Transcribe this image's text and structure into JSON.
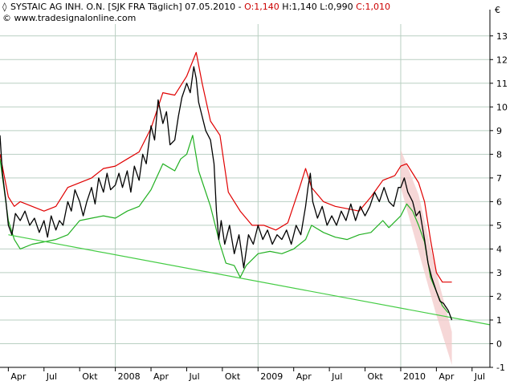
{
  "header": {
    "symbol_icon": "diamond-icon",
    "symbol_label": "SYSTAIC AG INH. O.N. [SJK FRA  Täglich] 07.05.2010 - ",
    "open_label": "O:1,140",
    "hl_label": " H:1,140 L:0,990 ",
    "close_label": "C:1,010",
    "copyright": "© www.tradesignalonline.com"
  },
  "colors": {
    "price": "#000000",
    "upper_band": "#e00000",
    "lower_band": "#22b022",
    "trendline": "#44cc44",
    "projection": "#f3c9c9",
    "grid": "#b9cfc2",
    "header_red": "#cc0000",
    "axis": "#000000"
  },
  "chart_data": {
    "type": "line",
    "title": "SYSTAIC AG INH. O.N. [SJK FRA  Täglich] 07.05.2010",
    "xlabel": "",
    "ylabel": "",
    "currency_label": "€",
    "ylim": [
      -1,
      13.5
    ],
    "y_ticks": [
      13,
      12,
      11,
      10,
      9,
      8,
      7,
      6,
      5,
      4,
      3,
      2,
      1,
      0,
      -1
    ],
    "y_tick_labels": [
      "13",
      "12",
      "11",
      "10",
      "9",
      "8",
      "7",
      "6",
      "5",
      "4",
      "3",
      "2",
      "1",
      "0",
      "-1"
    ],
    "x_ticks": [
      {
        "label": "Apr",
        "t": 0.0
      },
      {
        "label": "Jul",
        "t": 3.0
      },
      {
        "label": "Okt",
        "t": 6.0
      },
      {
        "label": "2008",
        "t": 9.0
      },
      {
        "label": "Apr",
        "t": 12.0
      },
      {
        "label": "Jul",
        "t": 15.0
      },
      {
        "label": "Okt",
        "t": 18.0
      },
      {
        "label": "2009",
        "t": 21.0
      },
      {
        "label": "Apr",
        "t": 24.0
      },
      {
        "label": "Jul",
        "t": 27.0
      },
      {
        "label": "Okt",
        "t": 30.0
      },
      {
        "label": "2010",
        "t": 33.0
      },
      {
        "label": "Apr",
        "t": 36.0
      },
      {
        "label": "Jul",
        "t": 39.0
      }
    ],
    "xlim": [
      -0.7,
      40.5
    ],
    "major_gridlines_t": [
      9.0,
      21.0,
      33.0
    ],
    "series": [
      {
        "name": "",
        "key": "price",
        "x": [
          -0.7,
          -0.5,
          -0.2,
          0.0,
          0.3,
          0.6,
          1.0,
          1.4,
          1.8,
          2.2,
          2.6,
          3.0,
          3.3,
          3.6,
          4.0,
          4.3,
          4.6,
          5.0,
          5.3,
          5.6,
          6.0,
          6.3,
          6.6,
          7.0,
          7.3,
          7.6,
          8.0,
          8.3,
          8.6,
          9.0,
          9.3,
          9.6,
          10.0,
          10.3,
          10.6,
          11.0,
          11.3,
          11.6,
          12.0,
          12.3,
          12.6,
          13.0,
          13.3,
          13.6,
          14.0,
          14.3,
          14.6,
          15.0,
          15.3,
          15.6,
          15.8,
          16.0,
          16.3,
          16.6,
          17.0,
          17.3,
          17.5,
          17.7,
          17.9,
          18.2,
          18.6,
          19.0,
          19.4,
          19.8,
          20.2,
          20.6,
          21.0,
          21.4,
          21.8,
          22.2,
          22.6,
          23.0,
          23.4,
          23.8,
          24.2,
          24.6,
          25.0,
          25.2,
          25.4,
          25.6,
          26.0,
          26.4,
          26.8,
          27.2,
          27.6,
          28.0,
          28.4,
          28.8,
          29.2,
          29.6,
          30.0,
          30.4,
          30.8,
          31.2,
          31.6,
          32.0,
          32.4,
          32.8,
          33.0,
          33.3,
          33.6,
          34.0,
          34.3,
          34.6,
          35.0,
          35.3,
          35.6,
          36.0,
          36.3,
          36.6,
          37.0,
          37.3
        ],
        "y": [
          8.8,
          7.2,
          6.0,
          5.0,
          4.6,
          5.5,
          5.2,
          5.6,
          5.0,
          5.3,
          4.7,
          5.2,
          4.5,
          5.4,
          4.8,
          5.2,
          5.0,
          6.0,
          5.6,
          6.5,
          6.0,
          5.4,
          6.0,
          6.6,
          5.9,
          7.0,
          6.4,
          7.2,
          6.5,
          6.7,
          7.2,
          6.6,
          7.3,
          6.4,
          7.5,
          6.9,
          8.0,
          7.6,
          9.2,
          8.6,
          10.3,
          9.3,
          9.8,
          8.4,
          8.6,
          9.6,
          10.4,
          11.0,
          10.6,
          11.7,
          11.2,
          10.2,
          9.6,
          9.0,
          8.6,
          7.6,
          5.6,
          4.4,
          5.2,
          4.2,
          5.0,
          3.8,
          4.6,
          3.2,
          4.6,
          4.2,
          5.0,
          4.4,
          4.8,
          4.2,
          4.6,
          4.4,
          4.8,
          4.2,
          5.0,
          4.6,
          5.8,
          6.6,
          7.2,
          6.0,
          5.3,
          5.8,
          5.0,
          5.4,
          5.0,
          5.6,
          5.2,
          5.9,
          5.2,
          5.8,
          5.4,
          5.8,
          6.4,
          6.0,
          6.6,
          6.0,
          5.8,
          6.6,
          6.6,
          7.0,
          6.4,
          6.0,
          5.4,
          5.6,
          4.4,
          3.4,
          2.8,
          2.2,
          1.8,
          1.7,
          1.4,
          1.0
        ]
      },
      {
        "name": "",
        "key": "upper",
        "x": [
          -0.7,
          0.0,
          0.5,
          1.0,
          2.0,
          3.0,
          4.0,
          5.0,
          6.0,
          7.0,
          8.0,
          9.0,
          10.0,
          11.0,
          12.0,
          13.0,
          14.0,
          15.0,
          15.8,
          16.3,
          17.0,
          17.8,
          18.5,
          19.5,
          20.5,
          21.5,
          22.5,
          23.5,
          24.5,
          25.0,
          25.5,
          26.5,
          27.5,
          28.5,
          29.5,
          30.5,
          31.5,
          32.5,
          33.0,
          33.5,
          34.0,
          34.5,
          35.0,
          35.5,
          36.0,
          36.5,
          37.3
        ],
        "y": [
          8.0,
          6.2,
          5.8,
          6.0,
          5.8,
          5.6,
          5.8,
          6.6,
          6.8,
          7.0,
          7.4,
          7.5,
          7.8,
          8.1,
          9.1,
          10.6,
          10.5,
          11.3,
          12.3,
          11.0,
          9.4,
          8.8,
          6.4,
          5.6,
          5.0,
          5.0,
          4.8,
          5.1,
          6.6,
          7.4,
          6.6,
          6.0,
          5.8,
          5.7,
          5.6,
          6.2,
          6.9,
          7.1,
          7.5,
          7.6,
          7.2,
          6.8,
          6.0,
          4.4,
          3.0,
          2.6,
          2.6
        ]
      },
      {
        "name": "",
        "key": "lower",
        "x": [
          -0.7,
          0.0,
          0.5,
          1.0,
          2.0,
          3.0,
          4.0,
          5.0,
          6.0,
          7.0,
          8.0,
          9.0,
          10.0,
          11.0,
          12.0,
          13.0,
          14.0,
          14.5,
          15.0,
          15.5,
          16.0,
          17.0,
          17.8,
          18.3,
          19.0,
          19.5,
          20.0,
          21.0,
          22.0,
          23.0,
          24.0,
          25.0,
          25.5,
          26.5,
          27.5,
          28.5,
          29.5,
          30.5,
          31.5,
          32.0,
          33.0,
          33.5,
          34.0,
          34.5,
          35.0,
          35.5,
          36.0,
          36.5,
          37.0
        ],
        "y": [
          7.8,
          5.2,
          4.4,
          4.0,
          4.2,
          4.3,
          4.4,
          4.6,
          5.2,
          5.3,
          5.4,
          5.3,
          5.6,
          5.8,
          6.5,
          7.6,
          7.3,
          7.8,
          8.0,
          8.8,
          7.3,
          5.8,
          4.2,
          3.4,
          3.3,
          2.8,
          3.3,
          3.8,
          3.9,
          3.8,
          4.0,
          4.4,
          5.0,
          4.7,
          4.5,
          4.4,
          4.6,
          4.7,
          5.2,
          4.9,
          5.4,
          5.9,
          5.6,
          5.0,
          4.3,
          2.8,
          2.2,
          1.6,
          1.3
        ]
      },
      {
        "name": "",
        "key": "trendline",
        "x": [
          0.0,
          40.5
        ],
        "y": [
          4.6,
          0.8
        ]
      }
    ],
    "projection": {
      "upper": {
        "x": [
          33.0,
          34.5,
          36.0,
          37.3
        ],
        "y": [
          8.2,
          6.3,
          3.0,
          0.5
        ]
      },
      "lower": {
        "x": [
          33.0,
          34.5,
          36.0,
          37.3
        ],
        "y": [
          6.6,
          3.9,
          1.2,
          -0.9
        ]
      }
    },
    "grid": true,
    "legend": "none"
  }
}
